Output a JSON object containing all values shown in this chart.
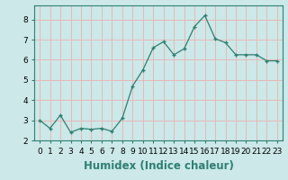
{
  "x": [
    0,
    1,
    2,
    3,
    4,
    5,
    6,
    7,
    8,
    9,
    10,
    11,
    12,
    13,
    14,
    15,
    16,
    17,
    18,
    19,
    20,
    21,
    22,
    23
  ],
  "y": [
    3.0,
    2.6,
    3.25,
    2.4,
    2.6,
    2.55,
    2.6,
    2.45,
    3.1,
    4.7,
    5.5,
    6.6,
    6.9,
    6.25,
    6.55,
    7.65,
    8.2,
    7.05,
    6.85,
    6.25,
    6.25,
    6.25,
    5.95,
    5.95
  ],
  "line_color": "#2e7f72",
  "marker": "+",
  "marker_size": 3,
  "marker_linewidth": 1.0,
  "linewidth": 0.9,
  "xlabel": "Humidex (Indice chaleur)",
  "ylim": [
    2.0,
    8.7
  ],
  "xlim": [
    -0.5,
    23.5
  ],
  "yticks": [
    2,
    3,
    4,
    5,
    6,
    7,
    8
  ],
  "xtick_labels": [
    "0",
    "1",
    "2",
    "3",
    "4",
    "5",
    "6",
    "7",
    "8",
    "9",
    "10",
    "11",
    "12",
    "13",
    "14",
    "15",
    "16",
    "17",
    "18",
    "19",
    "20",
    "21",
    "22",
    "23"
  ],
  "bg_color": "#cce8e8",
  "grid_color": "#e8b8b8",
  "tick_fontsize": 6.5,
  "xlabel_fontsize": 8.5,
  "spine_color": "#2e7f72"
}
